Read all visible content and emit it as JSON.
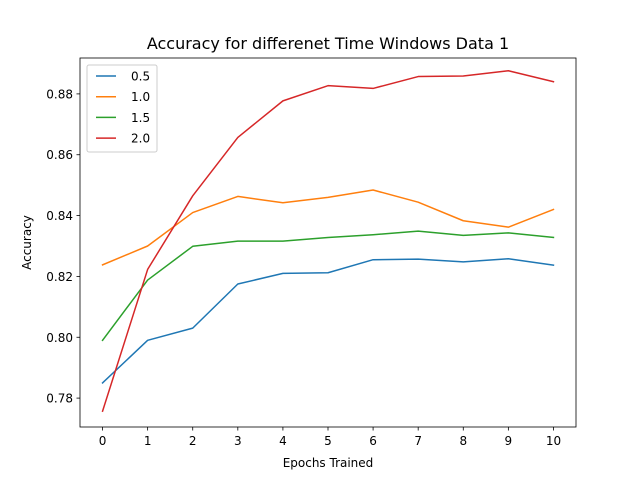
{
  "chart_data": {
    "type": "line",
    "title": "Accuracy for differenet Time Windows Data 1",
    "xlabel": "Epochs Trained",
    "ylabel": "Accuracy",
    "xlim": [
      -0.5,
      10.5
    ],
    "ylim": [
      0.7705,
      0.8918
    ],
    "x": [
      0,
      1,
      2,
      3,
      4,
      5,
      6,
      7,
      8,
      9,
      10
    ],
    "x_ticks": [
      0,
      1,
      2,
      3,
      4,
      5,
      6,
      7,
      8,
      9,
      10
    ],
    "y_ticks": [
      0.78,
      0.8,
      0.82,
      0.84,
      0.86,
      0.88
    ],
    "y_tick_labels": [
      "0.78",
      "0.80",
      "0.82",
      "0.84",
      "0.86",
      "0.88"
    ],
    "grid": false,
    "legend_position": "top-left",
    "series": [
      {
        "name": "0.5",
        "color": "#1f77b4",
        "values": [
          0.785,
          0.799,
          0.803,
          0.8175,
          0.821,
          0.8212,
          0.8255,
          0.8257,
          0.8248,
          0.8258,
          0.8237
        ]
      },
      {
        "name": "1.0",
        "color": "#ff7f0e",
        "values": [
          0.8238,
          0.83,
          0.841,
          0.8463,
          0.8442,
          0.846,
          0.8484,
          0.8444,
          0.8383,
          0.8362,
          0.842
        ]
      },
      {
        "name": "1.5",
        "color": "#2ca02c",
        "values": [
          0.799,
          0.8188,
          0.8299,
          0.8316,
          0.8316,
          0.8328,
          0.8337,
          0.8349,
          0.8335,
          0.8343,
          0.8328
        ]
      },
      {
        "name": "2.0",
        "color": "#d62728",
        "values": [
          0.7757,
          0.8223,
          0.8465,
          0.8657,
          0.8777,
          0.8827,
          0.8818,
          0.8857,
          0.8859,
          0.8876,
          0.884
        ]
      }
    ]
  }
}
